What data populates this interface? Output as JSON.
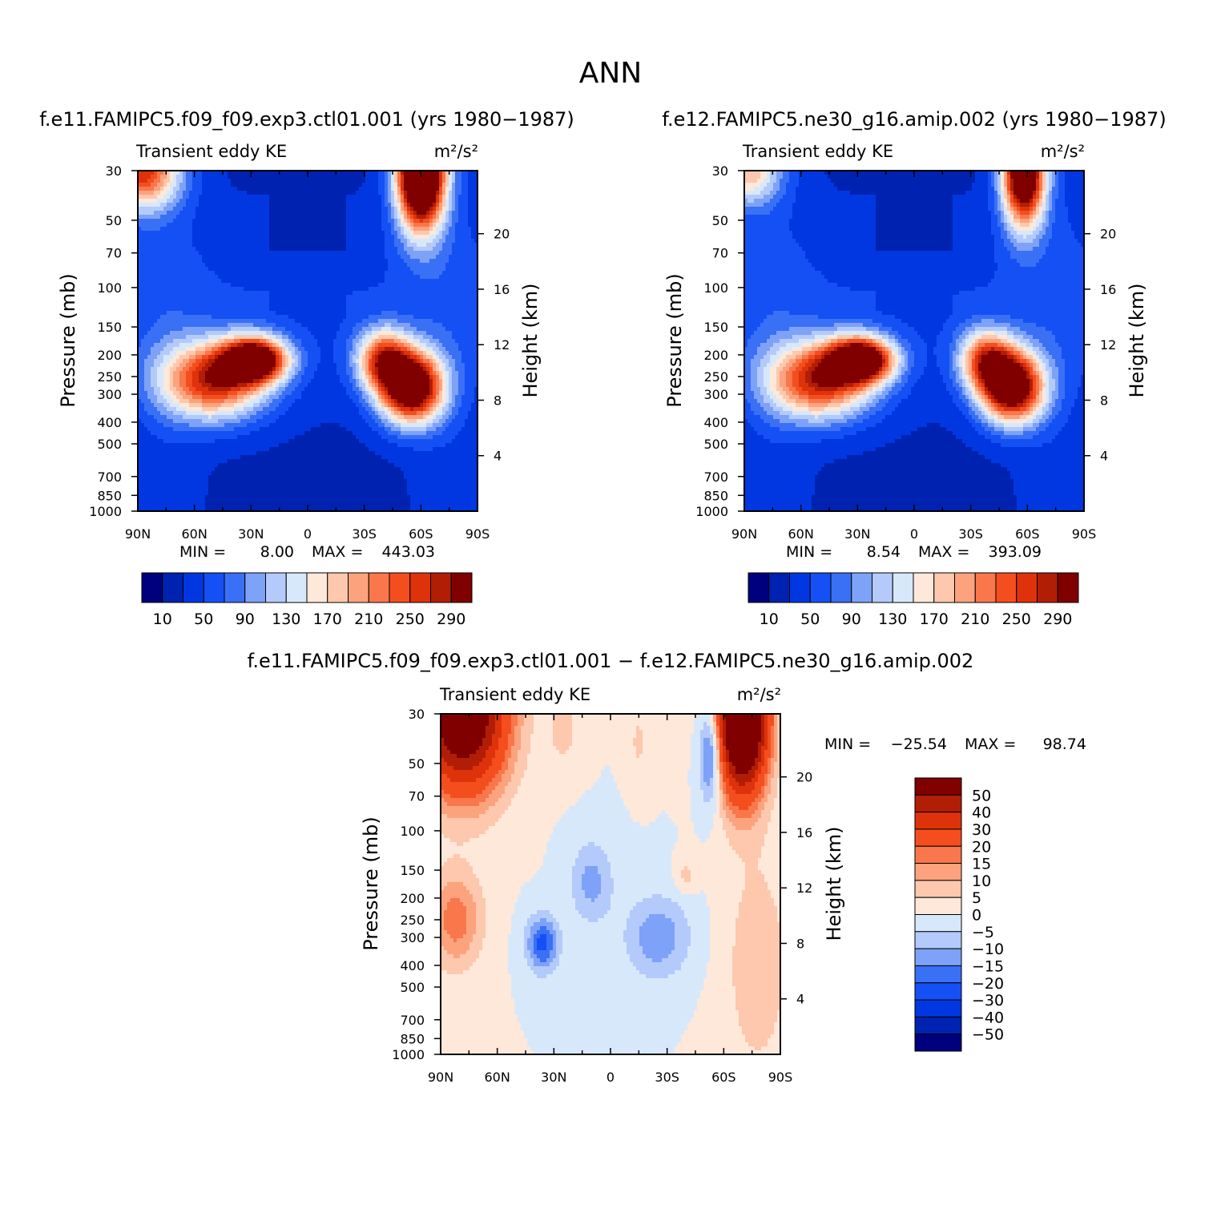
{
  "figure": {
    "title": "ANN"
  },
  "colors": {
    "abs_levels": [
      "#00007f",
      "#0022b0",
      "#0037e0",
      "#1550f5",
      "#3a70f5",
      "#7ea2f8",
      "#b3cafb",
      "#d8e8fb",
      "#fde8da",
      "#fdc8ad",
      "#fca37e",
      "#f9774a",
      "#f44e1f",
      "#de320b",
      "#b21d06",
      "#800000"
    ],
    "diff_levels": [
      "#800000",
      "#b21d06",
      "#de320b",
      "#f44e1f",
      "#f9774a",
      "#fca37e",
      "#fdc8ad",
      "#fde8da",
      "#d8e8fb",
      "#b3cafb",
      "#7ea2f8",
      "#3a70f5",
      "#1550f5",
      "#0037e0",
      "#0022b0",
      "#00007f"
    ]
  },
  "chart_data": [
    {
      "id": "panel-1",
      "type": "heatmap",
      "title": "f.e11.FAMIPC5.f09_f09.exp3.ctl01.001 (yrs 1980−1987)",
      "left_label": "Transient eddy KE",
      "units": "m²/s²",
      "ylabel": "Pressure (mb)",
      "y2label": "Height (km)",
      "x_ticks": [
        "90N",
        "60N",
        "30N",
        "0",
        "30S",
        "60S",
        "90S"
      ],
      "x_range": [
        -90,
        90
      ],
      "y_ticks": [
        30,
        50,
        70,
        100,
        150,
        200,
        250,
        300,
        400,
        500,
        700,
        850,
        1000
      ],
      "y_range": [
        30,
        1000
      ],
      "height_ticks": [
        20,
        16,
        12,
        8,
        4
      ],
      "min_label": "MIN =",
      "min_value": "8.00",
      "max_label": "MAX =",
      "max_value": "443.03",
      "levels": [
        10,
        30,
        50,
        70,
        90,
        110,
        130,
        150,
        170,
        190,
        210,
        230,
        250,
        270,
        290
      ],
      "colorbar_labels": [
        "10",
        "50",
        "90",
        "130",
        "170",
        "210",
        "250",
        "290"
      ],
      "features": [
        {
          "lat": 28,
          "p": 210,
          "value": 300,
          "sx": 12,
          "sy": 0.16
        },
        {
          "lat": 50,
          "p": 260,
          "value": 240,
          "sx": 20,
          "sy": 0.28
        },
        {
          "lat": -55,
          "p": 280,
          "value": 330,
          "sx": 12,
          "sy": 0.26
        },
        {
          "lat": -40,
          "p": 210,
          "value": 200,
          "sx": 10,
          "sy": 0.22
        },
        {
          "lat": -60,
          "p": 30,
          "value": 440,
          "sx": 9,
          "sy": 0.42
        },
        {
          "lat": 88,
          "p": 30,
          "value": 230,
          "sx": 14,
          "sy": 0.28
        }
      ]
    },
    {
      "id": "panel-2",
      "type": "heatmap",
      "title": "f.e12.FAMIPC5.ne30_g16.amip.002 (yrs 1980−1987)",
      "left_label": "Transient eddy KE",
      "units": "m²/s²",
      "ylabel": "Pressure (mb)",
      "y2label": "Height (km)",
      "x_ticks": [
        "90N",
        "60N",
        "30N",
        "0",
        "30S",
        "60S",
        "90S"
      ],
      "x_range": [
        -90,
        90
      ],
      "y_ticks": [
        30,
        50,
        70,
        100,
        150,
        200,
        250,
        300,
        400,
        500,
        700,
        850,
        1000
      ],
      "y_range": [
        30,
        1000
      ],
      "height_ticks": [
        20,
        16,
        12,
        8,
        4
      ],
      "min_label": "MIN =",
      "min_value": "8.54",
      "max_label": "MAX =",
      "max_value": "393.09",
      "levels": [
        10,
        30,
        50,
        70,
        90,
        110,
        130,
        150,
        170,
        190,
        210,
        230,
        250,
        270,
        290
      ],
      "colorbar_labels": [
        "10",
        "50",
        "90",
        "130",
        "170",
        "210",
        "250",
        "290"
      ],
      "features": [
        {
          "lat": 28,
          "p": 210,
          "value": 305,
          "sx": 12,
          "sy": 0.16
        },
        {
          "lat": 50,
          "p": 260,
          "value": 240,
          "sx": 20,
          "sy": 0.28
        },
        {
          "lat": -52,
          "p": 280,
          "value": 320,
          "sx": 12,
          "sy": 0.26
        },
        {
          "lat": -38,
          "p": 210,
          "value": 190,
          "sx": 10,
          "sy": 0.22
        },
        {
          "lat": -58,
          "p": 30,
          "value": 360,
          "sx": 8,
          "sy": 0.4
        },
        {
          "lat": 88,
          "p": 30,
          "value": 150,
          "sx": 12,
          "sy": 0.25
        }
      ]
    },
    {
      "id": "panel-diff",
      "type": "heatmap",
      "title": "f.e11.FAMIPC5.f09_f09.exp3.ctl01.001 − f.e12.FAMIPC5.ne30_g16.amip.002",
      "left_label": "Transient eddy KE",
      "units": "m²/s²",
      "ylabel": "Pressure (mb)",
      "y2label": "Height (km)",
      "x_ticks": [
        "90N",
        "60N",
        "30N",
        "0",
        "30S",
        "60S",
        "90S"
      ],
      "x_range": [
        -90,
        90
      ],
      "y_ticks": [
        30,
        50,
        70,
        100,
        150,
        200,
        250,
        300,
        400,
        500,
        700,
        850,
        1000
      ],
      "y_range": [
        30,
        1000
      ],
      "height_ticks": [
        20,
        16,
        12,
        8,
        4
      ],
      "min_label": "MIN =",
      "min_value": "−25.54",
      "max_label": "MAX =",
      "max_value": "98.74",
      "levels": [
        50,
        40,
        30,
        20,
        15,
        10,
        5,
        0,
        -5,
        -10,
        -15,
        -20,
        -30,
        -40,
        -50
      ],
      "colorbar_labels": [
        "50",
        "40",
        "30",
        "20",
        "15",
        "10",
        "5",
        "0",
        "−5",
        "−10",
        "−15",
        "−20",
        "−30",
        "−40",
        "−50"
      ],
      "features": [
        {
          "lat": 78,
          "p": 30,
          "value": 70,
          "sx": 16,
          "sy": 0.55
        },
        {
          "lat": -70,
          "p": 30,
          "value": 95,
          "sx": 9,
          "sy": 0.55
        },
        {
          "lat": 82,
          "p": 250,
          "value": 18,
          "sx": 10,
          "sy": 0.35
        },
        {
          "lat": -78,
          "p": 400,
          "value": 9,
          "sx": 12,
          "sy": 0.8
        },
        {
          "lat": 36,
          "p": 320,
          "value": -22,
          "sx": 6,
          "sy": 0.2
        },
        {
          "lat": 10,
          "p": 170,
          "value": -12,
          "sx": 8,
          "sy": 0.3
        },
        {
          "lat": -25,
          "p": 300,
          "value": -14,
          "sx": 12,
          "sy": 0.3
        },
        {
          "lat": -53,
          "p": 45,
          "value": -25,
          "sx": 4,
          "sy": 0.35
        },
        {
          "lat": -40,
          "p": 160,
          "value": 7,
          "sx": 4,
          "sy": 0.12
        },
        {
          "lat": 25,
          "p": 35,
          "value": 7,
          "sx": 6,
          "sy": 0.3
        },
        {
          "lat": -15,
          "p": 40,
          "value": 6,
          "sx": 4,
          "sy": 0.25
        }
      ]
    }
  ]
}
